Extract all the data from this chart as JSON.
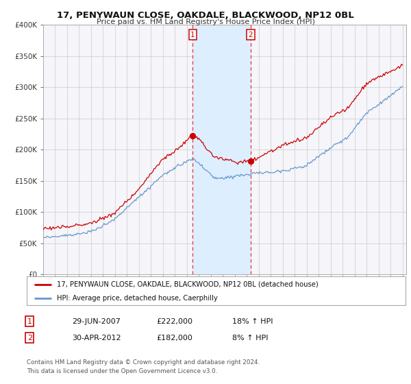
{
  "title": "17, PENYWAUN CLOSE, OAKDALE, BLACKWOOD, NP12 0BL",
  "subtitle": "Price paid vs. HM Land Registry's House Price Index (HPI)",
  "legend_line1": "17, PENYWAUN CLOSE, OAKDALE, BLACKWOOD, NP12 0BL (detached house)",
  "legend_line2": "HPI: Average price, detached house, Caerphilly",
  "transaction1_date": "29-JUN-2007",
  "transaction1_price": "£222,000",
  "transaction1_hpi": "18% ↑ HPI",
  "transaction2_date": "30-APR-2012",
  "transaction2_price": "£182,000",
  "transaction2_hpi": "8% ↑ HPI",
  "footer": "Contains HM Land Registry data © Crown copyright and database right 2024.\nThis data is licensed under the Open Government Licence v3.0.",
  "red_color": "#cc0000",
  "blue_color": "#6699cc",
  "shade_color": "#ddeeff",
  "vline_color": "#ee3333",
  "grid_color": "#cccccc",
  "background_color": "#ffffff",
  "plot_bg_color": "#f5f5fa",
  "sale1_x": 2007.496,
  "sale1_y": 222000,
  "sale2_x": 2012.33,
  "sale2_y": 182000,
  "xlim": [
    1995,
    2025.3
  ],
  "ylim": [
    0,
    400000
  ]
}
